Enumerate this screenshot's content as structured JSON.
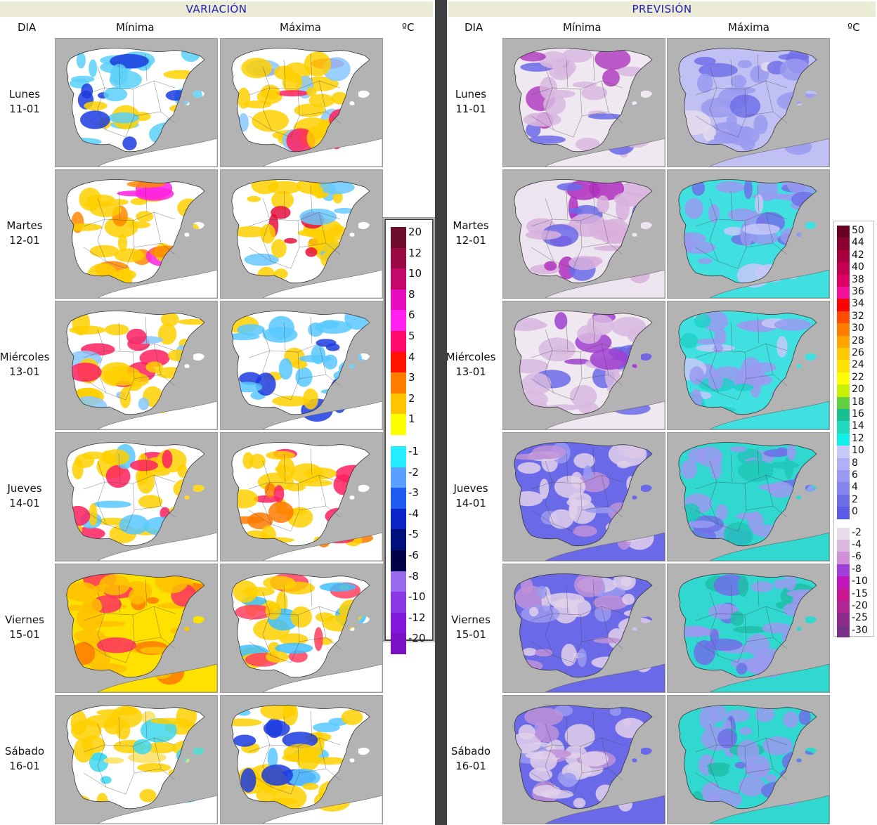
{
  "variacion": {
    "title": "VARIACIÓN",
    "col_dia": "DIA",
    "col_min": "Mínima",
    "col_max": "Máxima",
    "unit": "ºC",
    "legend": [
      {
        "label": "20",
        "color": "#6e0e2c"
      },
      {
        "label": "12",
        "color": "#9a0a44"
      },
      {
        "label": "10",
        "color": "#c4086a"
      },
      {
        "label": "8",
        "color": "#e60cc0"
      },
      {
        "label": "6",
        "color": "#ff22f0"
      },
      {
        "label": "5",
        "color": "#ff0a6a"
      },
      {
        "label": "4",
        "color": "#ff1200"
      },
      {
        "label": "3",
        "color": "#ff7e00"
      },
      {
        "label": "2",
        "color": "#ffc400"
      },
      {
        "label": "1",
        "color": "#ffff00"
      },
      {
        "label": "-1",
        "color": "#22eeff"
      },
      {
        "label": "-2",
        "color": "#5aa0ff"
      },
      {
        "label": "-3",
        "color": "#1e5cf0"
      },
      {
        "label": "-4",
        "color": "#0a24c8"
      },
      {
        "label": "-5",
        "color": "#00107a"
      },
      {
        "label": "-6",
        "color": "#000048"
      },
      {
        "label": "-8",
        "color": "#9a6aee"
      },
      {
        "label": "-10",
        "color": "#8a38e6"
      },
      {
        "label": "-12",
        "color": "#8218dc"
      },
      {
        "label": "-20",
        "color": "#7a10c4"
      }
    ]
  },
  "prevision": {
    "title": "PREVISIÓN",
    "col_dia": "DIA",
    "col_min": "Mínima",
    "col_max": "Máxima",
    "unit": "ºC",
    "legend": [
      {
        "label": "50",
        "color": "#6a0020"
      },
      {
        "label": "44",
        "color": "#8a0030"
      },
      {
        "label": "42",
        "color": "#a8003e"
      },
      {
        "label": "40",
        "color": "#c4004e"
      },
      {
        "label": "38",
        "color": "#de0066"
      },
      {
        "label": "36",
        "color": "#f0109a"
      },
      {
        "label": "34",
        "color": "#ff0000"
      },
      {
        "label": "32",
        "color": "#ff4c00"
      },
      {
        "label": "30",
        "color": "#ff7c00"
      },
      {
        "label": "28",
        "color": "#ffa400"
      },
      {
        "label": "26",
        "color": "#ffc800"
      },
      {
        "label": "24",
        "color": "#ffe200"
      },
      {
        "label": "22",
        "color": "#ffff00"
      },
      {
        "label": "20",
        "color": "#c8f000"
      },
      {
        "label": "18",
        "color": "#60d040"
      },
      {
        "label": "16",
        "color": "#18c090"
      },
      {
        "label": "14",
        "color": "#20d8c0"
      },
      {
        "label": "12",
        "color": "#10f0e8"
      },
      {
        "label": "10",
        "color": "#c8c8fa"
      },
      {
        "label": "8",
        "color": "#b0b0f6"
      },
      {
        "label": "6",
        "color": "#9a9af2"
      },
      {
        "label": "4",
        "color": "#8484ee"
      },
      {
        "label": "2",
        "color": "#6e6eea"
      },
      {
        "label": "0",
        "color": "#5a5ae6"
      },
      {
        "label": "-2",
        "color": "#e8dcea"
      },
      {
        "label": "-4",
        "color": "#dcb8dc"
      },
      {
        "label": "-6",
        "color": "#d090d8"
      },
      {
        "label": "-8",
        "color": "#a040d8"
      },
      {
        "label": "-10",
        "color": "#c018b8"
      },
      {
        "label": "-15",
        "color": "#cc1890"
      },
      {
        "label": "-20",
        "color": "#b02898"
      },
      {
        "label": "-25",
        "color": "#8e2c8e"
      },
      {
        "label": "-30",
        "color": "#7a3088"
      }
    ]
  },
  "days": [
    {
      "name": "Lunes",
      "date": "11-01"
    },
    {
      "name": "Martes",
      "date": "12-01"
    },
    {
      "name": "Miércoles",
      "date": "13-01"
    },
    {
      "name": "Jueves",
      "date": "14-01"
    },
    {
      "name": "Viernes",
      "date": "15-01"
    },
    {
      "name": "Sábado",
      "date": "16-01"
    }
  ],
  "map_colors": {
    "sea": "#b3b3b3",
    "variacion": [
      {
        "base": "#ffffff",
        "a": "#5ad0f8",
        "b": "#1c3ce0",
        "c": "#ffd200"
      },
      {
        "base": "#ffffff",
        "a": "#ffd000",
        "b": "#ff2060",
        "c": "#88c8ff"
      },
      {
        "base": "#ffffff",
        "a": "#ffd000",
        "b": "#ff8a00",
        "c": "#ff22e0"
      },
      {
        "base": "#ffffff",
        "a": "#ffd000",
        "b": "#e61040",
        "c": "#66c8ff"
      },
      {
        "base": "#ffffff",
        "a": "#ffd000",
        "b": "#ff2060",
        "c": "#88c8ff"
      },
      {
        "base": "#ffffff",
        "a": "#58c8ff",
        "b": "#1c3ce0",
        "c": "#ffd000"
      },
      {
        "base": "#ffffff",
        "a": "#ffd000",
        "b": "#ff2060",
        "c": "#58c8ff"
      },
      {
        "base": "#ffffff",
        "a": "#ffd000",
        "b": "#ff2060",
        "c": "#ff7a00"
      },
      {
        "base": "#ffe100",
        "a": "#ffc000",
        "b": "#ff7a00",
        "c": "#ff3060"
      },
      {
        "base": "#ffffff",
        "a": "#ffd000",
        "b": "#40c0ff",
        "c": "#ff4060"
      },
      {
        "base": "#ffffff",
        "a": "#ffd000",
        "b": "#40d8f0",
        "c": "#ffe060"
      },
      {
        "base": "#ffffff",
        "a": "#ffd000",
        "b": "#1c3ce0",
        "c": "#58c8ff"
      }
    ],
    "prevision": [
      {
        "base": "#f0e8f0",
        "a": "#d8b8e0",
        "b": "#b040c0",
        "c": "#6a6ae8"
      },
      {
        "base": "#c0c0f4",
        "a": "#9a9af0",
        "b": "#7070e8",
        "c": "#e6dcec"
      },
      {
        "base": "#ece4ee",
        "a": "#d8b0dc",
        "b": "#b030c0",
        "c": "#6a6ae8"
      },
      {
        "base": "#40e0e0",
        "a": "#9a9af0",
        "b": "#7070e8",
        "c": "#c8c8f8"
      },
      {
        "base": "#f0e8f0",
        "a": "#d8b8e0",
        "b": "#a040d0",
        "c": "#6a6ae8"
      },
      {
        "base": "#40e0e0",
        "a": "#9a9af0",
        "b": "#20d0c8",
        "c": "#c8c8f8"
      },
      {
        "base": "#6a6ae8",
        "a": "#e0d0ea",
        "b": "#c090d8",
        "c": "#9a9af0"
      },
      {
        "base": "#30d8d0",
        "a": "#9a9af0",
        "b": "#7070e8",
        "c": "#20c8b8"
      },
      {
        "base": "#6a6ae8",
        "a": "#e0d0ea",
        "b": "#c090d8",
        "c": "#9a9af0"
      },
      {
        "base": "#30d8d0",
        "a": "#9a9af0",
        "b": "#7070e8",
        "c": "#20c0a8"
      },
      {
        "base": "#6a6ae8",
        "a": "#e0d0ea",
        "b": "#c090d8",
        "c": "#9a9af0"
      },
      {
        "base": "#30d8d0",
        "a": "#9a9af0",
        "b": "#7070e8",
        "c": "#20c0a8"
      }
    ]
  }
}
